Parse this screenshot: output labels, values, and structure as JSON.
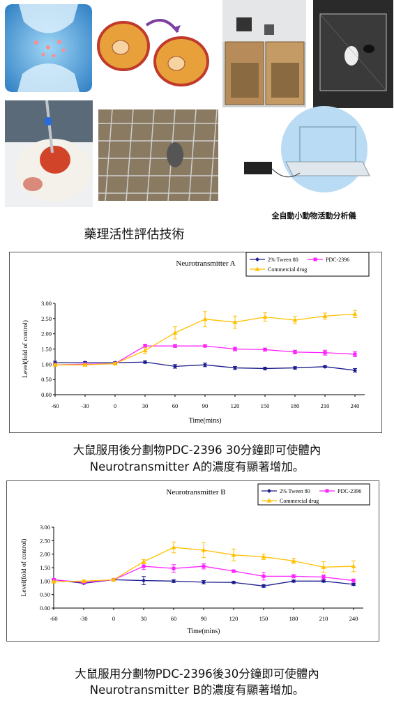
{
  "photos": {
    "device_label": "全自動小動物活動分析儀"
  },
  "section_caption": "藥理活性評估技術",
  "colors": {
    "tween": "#1a1a8c",
    "pdc": "#ff22ff",
    "commercial": "#ffc000"
  },
  "chart_data": [
    {
      "type": "line",
      "title": "Neurotransmitter A",
      "xlabel": "Time(mins)",
      "ylabel": "Level(fold of control)",
      "x": [
        -60,
        -30,
        0,
        30,
        60,
        90,
        120,
        150,
        180,
        210,
        240
      ],
      "ylim": [
        0,
        3
      ],
      "yticks": [
        "0.00",
        "0.50",
        "1.00",
        "1.50",
        "2.00",
        "2.50",
        "3.00"
      ],
      "legend_position": "top-right",
      "series": [
        {
          "name": "2% Tween 80",
          "values": [
            1.05,
            1.05,
            1.05,
            1.07,
            0.93,
            0.98,
            0.88,
            0.86,
            0.88,
            0.92,
            0.8
          ],
          "errors": [
            0.05,
            0.04,
            0.03,
            0.04,
            0.06,
            0.06,
            0.05,
            0.04,
            0.04,
            0.03,
            0.06
          ]
        },
        {
          "name": "PDC-2396",
          "values": [
            0.98,
            1.0,
            1.02,
            1.6,
            1.6,
            1.6,
            1.5,
            1.48,
            1.4,
            1.38,
            1.33
          ],
          "errors": [
            0.03,
            0.03,
            0.03,
            0.06,
            0.05,
            0.04,
            0.06,
            0.05,
            0.06,
            0.08,
            0.08
          ]
        },
        {
          "name": "Commercial drug",
          "values": [
            0.98,
            0.98,
            1.02,
            1.45,
            2.03,
            2.48,
            2.38,
            2.55,
            2.45,
            2.58,
            2.65
          ],
          "errors": [
            0.03,
            0.03,
            0.03,
            0.1,
            0.2,
            0.25,
            0.2,
            0.14,
            0.12,
            0.1,
            0.12
          ]
        }
      ]
    },
    {
      "type": "line",
      "title": "Neurotransmitter B",
      "xlabel": "Time(mins)",
      "ylabel": "Level(fold of control)",
      "x": [
        -60,
        -30,
        0,
        30,
        60,
        90,
        120,
        150,
        180,
        210,
        240
      ],
      "ylim": [
        0,
        3
      ],
      "yticks": [
        "0.00",
        "0.50",
        "1.00",
        "1.50",
        "2.00",
        "2.50",
        "3.00"
      ],
      "legend_position": "top-right",
      "series": [
        {
          "name": "2% Tween 80",
          "values": [
            1.05,
            0.92,
            1.05,
            1.02,
            1.0,
            0.96,
            0.95,
            0.82,
            1.0,
            1.0,
            0.88
          ],
          "errors": [
            0.03,
            0.03,
            0.04,
            0.15,
            0.05,
            0.06,
            0.04,
            0.05,
            0.04,
            0.04,
            0.04
          ]
        },
        {
          "name": "PDC-2396",
          "values": [
            1.05,
            0.95,
            1.05,
            1.55,
            1.47,
            1.55,
            1.37,
            1.18,
            1.18,
            1.15,
            1.02
          ],
          "errors": [
            0.04,
            0.04,
            0.04,
            0.12,
            0.14,
            0.1,
            0.04,
            0.14,
            0.06,
            0.08,
            0.06
          ]
        },
        {
          "name": "Commercial drug",
          "values": [
            0.98,
            1.0,
            1.05,
            1.72,
            2.25,
            2.15,
            1.97,
            1.9,
            1.75,
            1.52,
            1.55
          ],
          "errors": [
            0.03,
            0.04,
            0.04,
            0.08,
            0.2,
            0.28,
            0.22,
            0.1,
            0.1,
            0.2,
            0.2
          ]
        }
      ]
    }
  ],
  "captions": {
    "a_line1": "大鼠服用後分劃物PDC-2396 30分鐘即可使體內",
    "a_line2": "Neurotransmitter A的濃度有顯著增加。",
    "b_line1": "大鼠服用分劃物PDC-2396後30分鐘即可使體內",
    "b_line2": "Neurotransmitter B的濃度有顯著增加。"
  }
}
